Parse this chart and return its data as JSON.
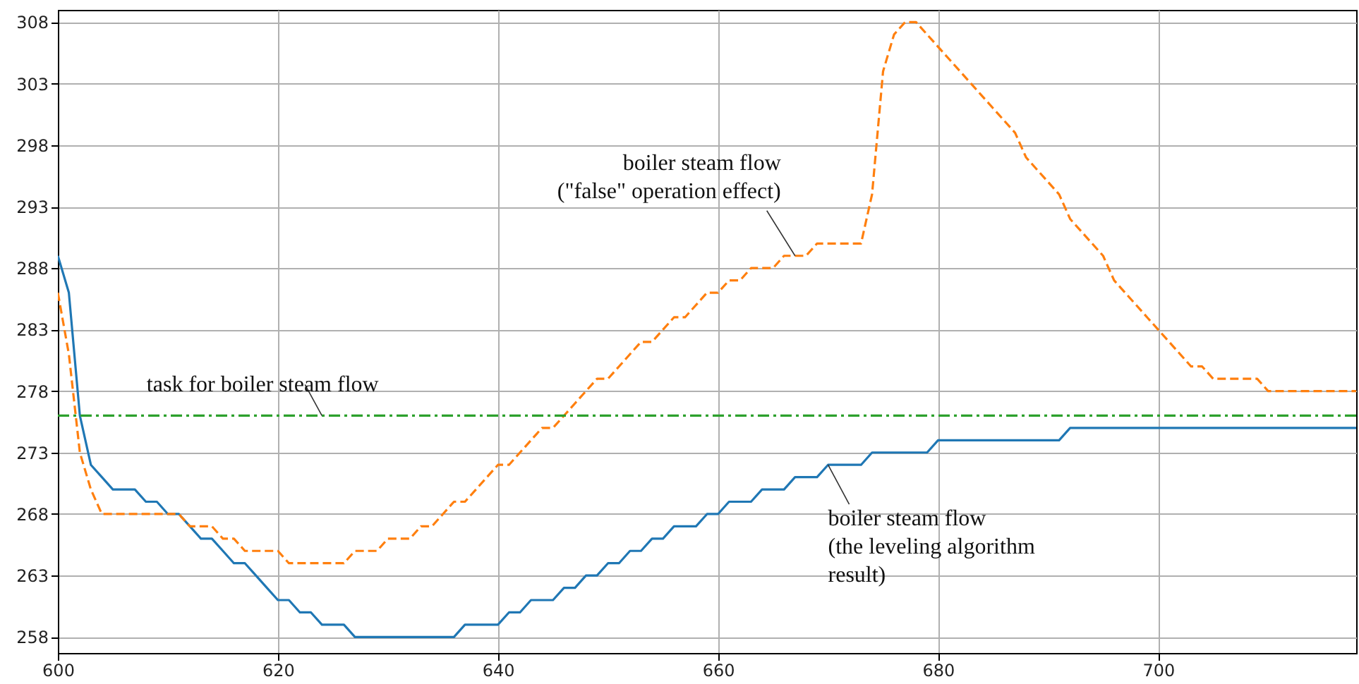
{
  "chart_data": {
    "type": "line",
    "xlim": [
      600,
      718
    ],
    "ylim": [
      256.7,
      309
    ],
    "xticks": [
      600,
      620,
      640,
      660,
      680,
      700
    ],
    "yticks": [
      258,
      263,
      268,
      273,
      278,
      283,
      288,
      293,
      298,
      303,
      308
    ],
    "grid": true,
    "marker": "none",
    "x": [
      600,
      601,
      602,
      603,
      604,
      605,
      606,
      607,
      608,
      609,
      610,
      611,
      612,
      613,
      614,
      615,
      616,
      617,
      618,
      619,
      620,
      621,
      622,
      623,
      624,
      625,
      626,
      627,
      628,
      629,
      630,
      631,
      632,
      633,
      634,
      635,
      636,
      637,
      638,
      639,
      640,
      641,
      642,
      643,
      644,
      645,
      646,
      647,
      648,
      649,
      650,
      651,
      652,
      653,
      654,
      655,
      656,
      657,
      658,
      659,
      660,
      661,
      662,
      663,
      664,
      665,
      666,
      667,
      668,
      669,
      670,
      671,
      672,
      673,
      674,
      675,
      676,
      677,
      678,
      679,
      680,
      681,
      682,
      683,
      684,
      685,
      686,
      687,
      688,
      689,
      690,
      691,
      692,
      693,
      694,
      695,
      696,
      697,
      698,
      699,
      700,
      701,
      702,
      703,
      704,
      705,
      706,
      707,
      708,
      709,
      710,
      711,
      712,
      713,
      714,
      715,
      716,
      717,
      718
    ],
    "series": [
      {
        "color": "#1f77b4",
        "line_style": "solid",
        "values": [
          289,
          286,
          276,
          272,
          271,
          270,
          270,
          270,
          269,
          269,
          268,
          268,
          267,
          266,
          266,
          265,
          264,
          264,
          263,
          262,
          261,
          261,
          260,
          260,
          259,
          259,
          259,
          258,
          258,
          258,
          258,
          258,
          258,
          258,
          258,
          258,
          258,
          259,
          259,
          259,
          259,
          260,
          260,
          261,
          261,
          261,
          262,
          262,
          263,
          263,
          264,
          264,
          265,
          265,
          266,
          266,
          267,
          267,
          267,
          268,
          268,
          269,
          269,
          269,
          270,
          270,
          270,
          271,
          271,
          271,
          272,
          272,
          272,
          272,
          273,
          273,
          273,
          273,
          273,
          273,
          274,
          274,
          274,
          274,
          274,
          274,
          274,
          274,
          274,
          274,
          274,
          274,
          275,
          275,
          275,
          275,
          275,
          275,
          275,
          275,
          275,
          275,
          275,
          275,
          275,
          275,
          275,
          275,
          275,
          275,
          275,
          275,
          275,
          275,
          275,
          275,
          275,
          275,
          275
        ]
      },
      {
        "color": "#ff7f0e",
        "line_style": "dashed",
        "values": [
          286,
          281,
          273,
          270,
          268,
          268,
          268,
          268,
          268,
          268,
          268,
          268,
          267,
          267,
          267,
          266,
          266,
          265,
          265,
          265,
          265,
          264,
          264,
          264,
          264,
          264,
          264,
          265,
          265,
          265,
          266,
          266,
          266,
          267,
          267,
          268,
          269,
          269,
          270,
          271,
          272,
          272,
          273,
          274,
          275,
          275,
          276,
          277,
          278,
          279,
          279,
          280,
          281,
          282,
          282,
          283,
          284,
          284,
          285,
          286,
          286,
          287,
          287,
          288,
          288,
          288,
          289,
          289,
          289,
          290,
          290,
          290,
          290,
          290,
          294,
          304,
          307,
          308,
          308,
          307,
          306,
          305,
          304,
          303,
          302,
          301,
          300,
          299,
          297,
          296,
          295,
          294,
          292,
          291,
          290,
          289,
          287,
          286,
          285,
          284,
          283,
          282,
          281,
          280,
          280,
          279,
          279,
          279,
          279,
          279,
          278,
          278,
          278,
          278,
          278,
          278,
          278,
          278,
          278
        ]
      }
    ],
    "ref_lines": [
      {
        "axis": "y",
        "value": 276,
        "color": "#2ca02c",
        "line_style": "dashdot"
      }
    ],
    "annotations": [
      {
        "text": "task for boiler steam flow",
        "x": 624,
        "y": 276
      },
      {
        "text": "boiler steam flow\n(\"false\" operation effect)",
        "x": 667,
        "y": 289
      },
      {
        "text": "boiler steam flow\n(the leveling algorithm\nresult)",
        "x": 670,
        "y": 272
      }
    ]
  }
}
